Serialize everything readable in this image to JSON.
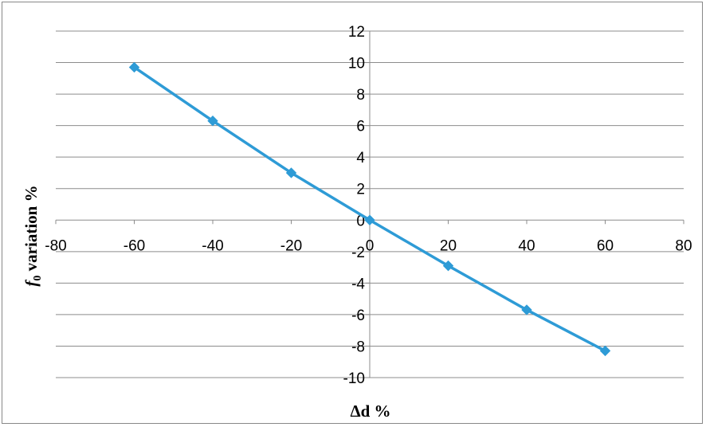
{
  "chart_data": {
    "type": "scatter",
    "title": "",
    "xlabel": "Δd %",
    "ylabel_main": "f",
    "ylabel_sub": "0",
    "ylabel_rest": " variation %",
    "xlim": [
      -80,
      80
    ],
    "ylim": [
      -10,
      12
    ],
    "x_ticks": [
      -80,
      -60,
      -40,
      -20,
      0,
      20,
      40,
      60,
      80
    ],
    "y_ticks": [
      -10,
      -8,
      -6,
      -4,
      -2,
      0,
      2,
      4,
      6,
      8,
      10,
      12
    ],
    "grid": "horizontal",
    "legend": "none",
    "line_style": "straight line with diamond markers",
    "series": [
      {
        "color": "#2E9BD6",
        "x": [
          -60,
          -40,
          -20,
          0,
          20,
          40,
          60
        ],
        "y": [
          9.7,
          6.3,
          3.0,
          0.0,
          -2.9,
          -5.7,
          -8.3
        ]
      }
    ]
  }
}
